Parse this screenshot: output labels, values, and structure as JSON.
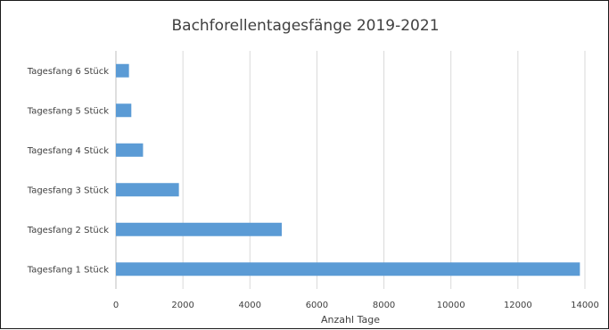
{
  "chart_data": {
    "type": "bar",
    "orientation": "horizontal",
    "title": "Bachforellentagesfänge 2019-2021",
    "xlabel": "Anzahl Tage",
    "ylabel": "",
    "categories": [
      "Tagesfang 1 Stück",
      "Tagesfang 2 Stück",
      "Tagesfang 3 Stück",
      "Tagesfang 4 Stück",
      "Tagesfang 5 Stück",
      "Tagesfang 6 Stück"
    ],
    "values": [
      13850,
      4950,
      1880,
      810,
      460,
      390
    ],
    "xlim": [
      0,
      14000
    ],
    "xticks": [
      0,
      2000,
      4000,
      6000,
      8000,
      10000,
      12000,
      14000
    ],
    "grid": true,
    "legend": "none",
    "colors": {
      "bar": "#5b9bd5",
      "grid": "#d9d9d9",
      "text": "#404040",
      "frame": "#1a1a1a"
    }
  }
}
